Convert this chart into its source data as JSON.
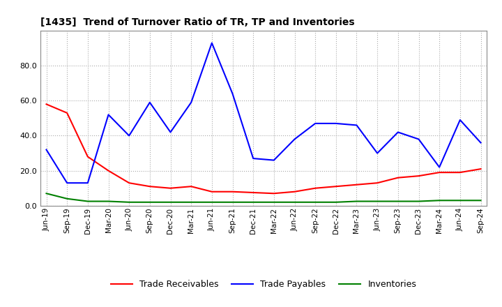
{
  "title": "[1435]  Trend of Turnover Ratio of TR, TP and Inventories",
  "x_labels": [
    "Jun-19",
    "Sep-19",
    "Dec-19",
    "Mar-20",
    "Jun-20",
    "Sep-20",
    "Dec-20",
    "Mar-21",
    "Jun-21",
    "Sep-21",
    "Dec-21",
    "Mar-22",
    "Jun-22",
    "Sep-22",
    "Dec-22",
    "Mar-23",
    "Jun-23",
    "Sep-23",
    "Dec-23",
    "Mar-24",
    "Jun-24",
    "Sep-24"
  ],
  "trade_receivables": [
    58.0,
    53.0,
    28.0,
    20.0,
    13.0,
    11.0,
    10.0,
    11.0,
    8.0,
    8.0,
    7.5,
    7.0,
    8.0,
    10.0,
    11.0,
    12.0,
    13.0,
    16.0,
    17.0,
    19.0,
    19.0,
    21.0
  ],
  "trade_payables": [
    32.0,
    13.0,
    13.0,
    52.0,
    40.0,
    59.0,
    42.0,
    59.0,
    93.0,
    64.0,
    27.0,
    26.0,
    38.0,
    47.0,
    47.0,
    46.0,
    30.0,
    42.0,
    38.0,
    22.0,
    49.0,
    36.0
  ],
  "inventories": [
    7.0,
    4.0,
    2.5,
    2.5,
    2.0,
    2.0,
    2.0,
    2.0,
    2.0,
    2.0,
    2.0,
    2.0,
    2.0,
    2.0,
    2.0,
    2.5,
    2.5,
    2.5,
    2.5,
    3.0,
    3.0,
    3.0
  ],
  "ylim": [
    0,
    100
  ],
  "yticks": [
    0.0,
    20.0,
    40.0,
    60.0,
    80.0
  ],
  "tr_color": "#ff0000",
  "tp_color": "#0000ff",
  "inv_color": "#008000",
  "bg_color": "#ffffff",
  "grid_color": "#aaaaaa",
  "legend_labels": [
    "Trade Receivables",
    "Trade Payables",
    "Inventories"
  ]
}
